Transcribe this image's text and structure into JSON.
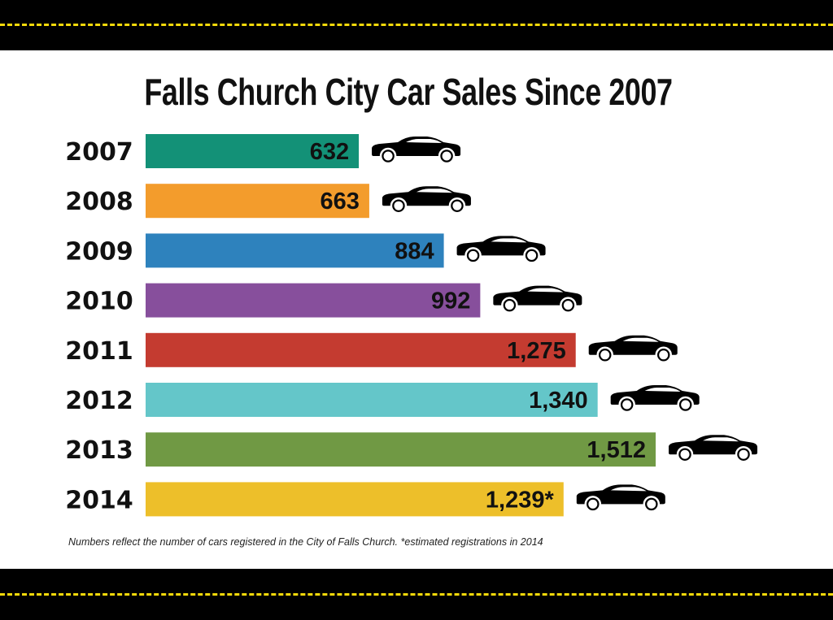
{
  "chart_data": {
    "type": "bar",
    "orientation": "horizontal",
    "title": "Falls Church City Car Sales Since 2007",
    "categories": [
      "2007",
      "2008",
      "2009",
      "2010",
      "2011",
      "2012",
      "2013",
      "2014"
    ],
    "values": [
      632,
      663,
      884,
      992,
      1275,
      1340,
      1512,
      1239
    ],
    "value_labels": [
      "632",
      "663",
      "884",
      "992",
      "1,275",
      "1,340",
      "1,512",
      "1,239*"
    ],
    "colors": [
      "#139177",
      "#f39c2c",
      "#2e82bd",
      "#874f9c",
      "#c43b30",
      "#64c6c9",
      "#709944",
      "#edbf2a"
    ],
    "xlim": [
      0,
      1512
    ],
    "grid": false,
    "legend": "none",
    "marker_icon": "car-icon"
  },
  "footnote": "Numbers reflect the number of cars registered in the City of Falls Church. *estimated registrations in 2014",
  "decoration": {
    "road_color": "#000000",
    "lane_dash_color": "#f5d90a"
  }
}
